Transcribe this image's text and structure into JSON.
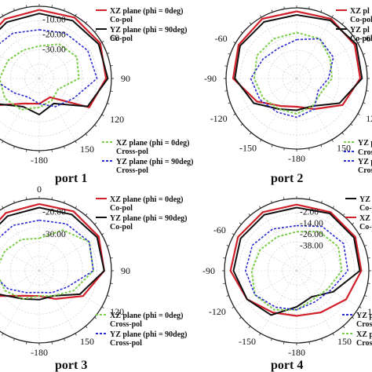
{
  "colors": {
    "xz_co": "#d0202a",
    "yz_co": "#111111",
    "xz_cross": "#7ccd4a",
    "yz_cross": "#2b2bd2"
  },
  "chart_data": [
    {
      "type": "polar",
      "title": "port 1",
      "radial_ticks": [
        "-10.00",
        "-20.00",
        "-30.00"
      ],
      "angle_ticks": [
        "0",
        "60",
        "90",
        "120",
        "150",
        "-180"
      ],
      "legend_co": [
        {
          "line1": "XZ plane (phi = 0deg)",
          "line2": "Co-pol"
        },
        {
          "line1": "YZ plane (phi = 90deg)",
          "line2": "Co-pol"
        }
      ],
      "legend_cross": [
        {
          "line1": "XZ plane (phi = 0deg)",
          "line2": "Cross-pol"
        },
        {
          "line1": "YZ plane (phi = 90deg)",
          "line2": "Cross-pol"
        }
      ],
      "range": [
        -40,
        0
      ],
      "theta_deg": [
        0,
        30,
        60,
        90,
        120,
        150,
        180,
        210,
        240,
        270,
        300,
        330
      ],
      "series": [
        {
          "key": "xz_co",
          "r_db": [
            -2,
            -1,
            -1,
            -3,
            -8,
            -28,
            -26,
            -24,
            -10,
            -4,
            -3,
            -2
          ]
        },
        {
          "key": "yz_co",
          "r_db": [
            -4,
            -3,
            -2,
            -2,
            -9,
            -24,
            -20,
            -22,
            -12,
            -5,
            -4,
            -4
          ]
        },
        {
          "key": "xz_cross",
          "r_db": [
            -22,
            -18,
            -16,
            -18,
            -28,
            -26,
            -24,
            -20,
            -18,
            -18,
            -20,
            -22
          ]
        },
        {
          "key": "yz_cross",
          "r_db": [
            -13,
            -11,
            -9,
            -8,
            -18,
            -22,
            -26,
            -28,
            -24,
            -14,
            -9,
            -11
          ]
        }
      ]
    },
    {
      "type": "polar",
      "title": "port 2",
      "radial_ticks": [],
      "angle_ticks": [
        "-60",
        "60",
        "-90",
        "90",
        "-120",
        "120",
        "-150",
        "150",
        "-180"
      ],
      "legend_co": [
        {
          "line1": "XZ pl",
          "line2": "Co-pol"
        },
        {
          "line1": "YZ pl",
          "line2": "Co-pol"
        }
      ],
      "legend_cross": [
        {
          "line1": "YZ pl",
          "line2": ""
        },
        {
          "line1": "Cross",
          "line2": ""
        },
        {
          "line1": "YZ pl",
          "line2": "Cross"
        }
      ],
      "range": [
        -40,
        0
      ],
      "theta_deg": [
        0,
        30,
        60,
        90,
        120,
        150,
        180,
        210,
        240,
        270,
        300,
        330
      ],
      "series": [
        {
          "key": "xz_co",
          "r_db": [
            -2,
            -1,
            -2,
            -4,
            -10,
            -20,
            -24,
            -22,
            -14,
            -4,
            -2,
            -1
          ]
        },
        {
          "key": "yz_co",
          "r_db": [
            -4,
            -2,
            -1,
            -3,
            -12,
            -22,
            -22,
            -20,
            -12,
            -5,
            -3,
            -3
          ]
        },
        {
          "key": "xz_cross",
          "r_db": [
            -14,
            -14,
            -18,
            -20,
            -24,
            -22,
            -20,
            -20,
            -18,
            -16,
            -14,
            -14
          ]
        },
        {
          "key": "yz_cross",
          "r_db": [
            -18,
            -14,
            -16,
            -22,
            -26,
            -20,
            -18,
            -18,
            -16,
            -14,
            -18,
            -20
          ]
        }
      ]
    },
    {
      "type": "polar",
      "title": "port 3",
      "radial_ticks": [
        "-20.00",
        "-30.00"
      ],
      "angle_ticks": [
        "0",
        "90",
        "120",
        "150",
        "-180"
      ],
      "legend_co": [
        {
          "line1": "XZ plane (phi = 0deg)",
          "line2": "Co-pol"
        },
        {
          "line1": "YZ plane (phi = 90deg)",
          "line2": "Co-pol"
        }
      ],
      "legend_cross": [
        {
          "line1": "XZ plane (phi = 0deg)",
          "line2": "Cross-pol"
        },
        {
          "line1": "YZ plane (phi = 90deg)",
          "line2": "Cross-pol"
        }
      ],
      "range": [
        -40,
        0
      ],
      "theta_deg": [
        0,
        30,
        60,
        90,
        120,
        150,
        180,
        210,
        240,
        270,
        300,
        330
      ],
      "series": [
        {
          "key": "xz_co",
          "r_db": [
            -3,
            -2,
            -2,
            -4,
            -12,
            -22,
            -26,
            -24,
            -12,
            -5,
            -4,
            -3
          ]
        },
        {
          "key": "yz_co",
          "r_db": [
            -5,
            -4,
            -3,
            -4,
            -14,
            -24,
            -24,
            -22,
            -14,
            -6,
            -5,
            -5
          ]
        },
        {
          "key": "xz_cross",
          "r_db": [
            -22,
            -14,
            -8,
            -10,
            -18,
            -24,
            -26,
            -22,
            -18,
            -16,
            -18,
            -20
          ]
        },
        {
          "key": "yz_cross",
          "r_db": [
            -12,
            -10,
            -8,
            -10,
            -22,
            -26,
            -28,
            -26,
            -20,
            -12,
            -10,
            -11
          ]
        }
      ]
    },
    {
      "type": "polar",
      "title": "port 4",
      "radial_ticks": [
        "-2.00",
        "-14.00",
        "-26.00",
        "-38.00"
      ],
      "angle_ticks": [
        "-60",
        "-90",
        "90",
        "-120",
        "120",
        "-150",
        "150",
        "-180"
      ],
      "legend_co": [
        {
          "line1": "YZ pl",
          "line2": "Co-po"
        },
        {
          "line1": "XZ pl",
          "line2": "Co-po"
        }
      ],
      "legend_cross": [
        {
          "line1": "YZ p",
          "line2": "Cros"
        },
        {
          "line1": "XZ p",
          "line2": "Cros"
        }
      ],
      "range": [
        -48,
        0
      ],
      "theta_deg": [
        0,
        30,
        60,
        90,
        120,
        150,
        180,
        210,
        240,
        270,
        300,
        330
      ],
      "series": [
        {
          "key": "xz_co",
          "r_db": [
            -4,
            -3,
            -3,
            -5,
            -10,
            -16,
            -18,
            -16,
            -10,
            -4,
            -3,
            -3
          ]
        },
        {
          "key": "yz_co",
          "r_db": [
            -6,
            -4,
            -4,
            -6,
            -20,
            -28,
            -24,
            -14,
            -10,
            -6,
            -5,
            -5
          ]
        },
        {
          "key": "xz_cross",
          "r_db": [
            -22,
            -18,
            -16,
            -18,
            -24,
            -26,
            -22,
            -18,
            -16,
            -18,
            -20,
            -22
          ]
        },
        {
          "key": "yz_cross",
          "r_db": [
            -18,
            -14,
            -12,
            -14,
            -22,
            -24,
            -22,
            -20,
            -16,
            -14,
            -14,
            -16
          ]
        }
      ]
    }
  ]
}
